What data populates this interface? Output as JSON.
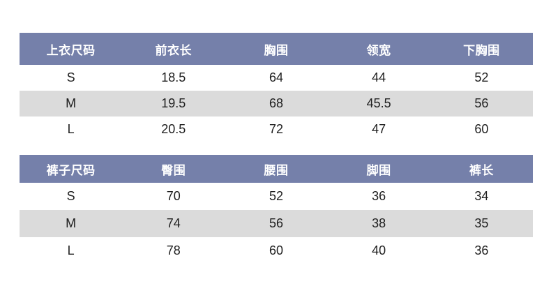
{
  "colors": {
    "header_bg": "#7580aa",
    "header_text": "#ffffff",
    "row_bg": "#ffffff",
    "row_alt_bg": "#dbdbdb",
    "body_text": "#1e1e1e",
    "page_bg": "#ffffff"
  },
  "chart_data": [
    {
      "type": "table",
      "name": "tops-size-chart",
      "headers": [
        "上衣尺码",
        "前衣长",
        "胸围",
        "领宽",
        "下胸围"
      ],
      "rows": [
        [
          "S",
          "18.5",
          "64",
          "44",
          "52"
        ],
        [
          "M",
          "19.5",
          "68",
          "45.5",
          "56"
        ],
        [
          "L",
          "20.5",
          "72",
          "47",
          "60"
        ]
      ],
      "layout": {
        "zebra_striping": true,
        "header_style": "solid-fill",
        "alignment": "center"
      }
    },
    {
      "type": "table",
      "name": "pants-size-chart",
      "headers": [
        "裤子尺码",
        "臀围",
        "腰围",
        "脚围",
        "裤长"
      ],
      "rows": [
        [
          "S",
          "70",
          "52",
          "36",
          "34"
        ],
        [
          "M",
          "74",
          "56",
          "38",
          "35"
        ],
        [
          "L",
          "78",
          "60",
          "40",
          "36"
        ]
      ],
      "layout": {
        "zebra_striping": true,
        "header_style": "solid-fill",
        "alignment": "center"
      }
    }
  ]
}
